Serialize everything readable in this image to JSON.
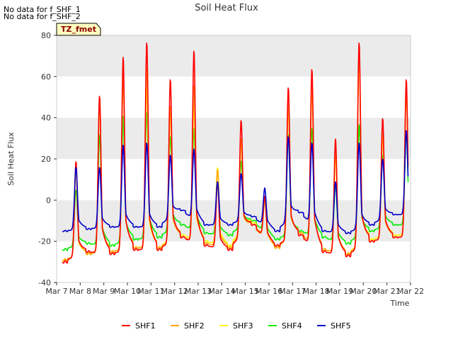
{
  "notes": [
    "No data for f_SHF_1",
    "No data for f_SHF_2"
  ],
  "colors": {
    "SHF1": "#ff0000",
    "SHF2": "#ffa500",
    "SHF3": "#ffff00",
    "SHF4": "#00ee00",
    "SHF5": "#0000cc",
    "band": "#ebebeb",
    "tz_bg": "#ffffc0",
    "tz_text": "#8b0000"
  },
  "chart_data": {
    "type": "line",
    "title": "Soil Heat Flux",
    "xlabel": "Time",
    "ylabel": "Soil Heat Flux",
    "ylim": [
      -40,
      80
    ],
    "xlim": [
      7,
      22
    ],
    "yticks": [
      -40,
      -20,
      0,
      20,
      40,
      60,
      80
    ],
    "xtick_values": [
      7,
      8,
      9,
      10,
      11,
      12,
      13,
      14,
      15,
      16,
      17,
      18,
      19,
      20,
      21,
      22
    ],
    "xtick_labels": [
      "Mar 7",
      "Mar 8",
      "Mar 9",
      "Mar 10",
      "Mar 11",
      "Mar 12",
      "Mar 13",
      "Mar 14",
      "Mar 15",
      "Mar 16",
      "Mar 17",
      "Mar 18",
      "Mar 19",
      "Mar 20",
      "Mar 21",
      "Mar 22"
    ],
    "annotation": "TZ_fmet",
    "legend": [
      "SHF1",
      "SHF2",
      "SHF3",
      "SHF4",
      "SHF5"
    ],
    "daily": {
      "days": [
        7,
        8,
        9,
        10,
        11,
        12,
        13,
        14,
        15,
        16,
        17,
        18,
        19,
        20,
        21
      ],
      "SHF1": {
        "peak": [
          19,
          51,
          70,
          77,
          59,
          73,
          9,
          39,
          2,
          55,
          64,
          30,
          77,
          40,
          59
        ],
        "min": [
          -30,
          -25,
          -26,
          -24,
          -24,
          -18,
          -22,
          -24,
          -12,
          -22,
          -17,
          -25,
          -27,
          -20,
          -18
        ]
      },
      "SHF2": {
        "peak": [
          17,
          50,
          62,
          65,
          46,
          56,
          15,
          30,
          1,
          47,
          56,
          26,
          71,
          33,
          55
        ],
        "min": [
          -29,
          -26,
          -25,
          -23,
          -23,
          -18,
          -21,
          -23,
          -12,
          -23,
          -16,
          -24,
          -26,
          -20,
          -18
        ]
      },
      "SHF3": {
        "peak": [
          15,
          47,
          61,
          55,
          44,
          47,
          16,
          29,
          0,
          45,
          54,
          22,
          70,
          31,
          54
        ],
        "min": [
          -29,
          -26,
          -25,
          -23,
          -23,
          -17,
          -20,
          -22,
          -11,
          -23,
          -16,
          -24,
          -26,
          -19,
          -17
        ]
      },
      "SHF4": {
        "peak": [
          5,
          32,
          41,
          43,
          31,
          35,
          8,
          19,
          0,
          32,
          35,
          8,
          37,
          22,
          34
        ],
        "min": [
          -24,
          -21,
          -22,
          -19,
          -18,
          -12,
          -16,
          -17,
          -10,
          -19,
          -15,
          -18,
          -21,
          -15,
          -12
        ]
      },
      "SHF5": {
        "peak": [
          16,
          16,
          27,
          28,
          22,
          25,
          9,
          13,
          6,
          31,
          28,
          9,
          28,
          20,
          34
        ],
        "min": [
          -15,
          -14,
          -13,
          -13,
          -13,
          -5,
          -12,
          -12,
          -8,
          -15,
          -6,
          -15,
          -16,
          -12,
          -7
        ]
      }
    }
  }
}
